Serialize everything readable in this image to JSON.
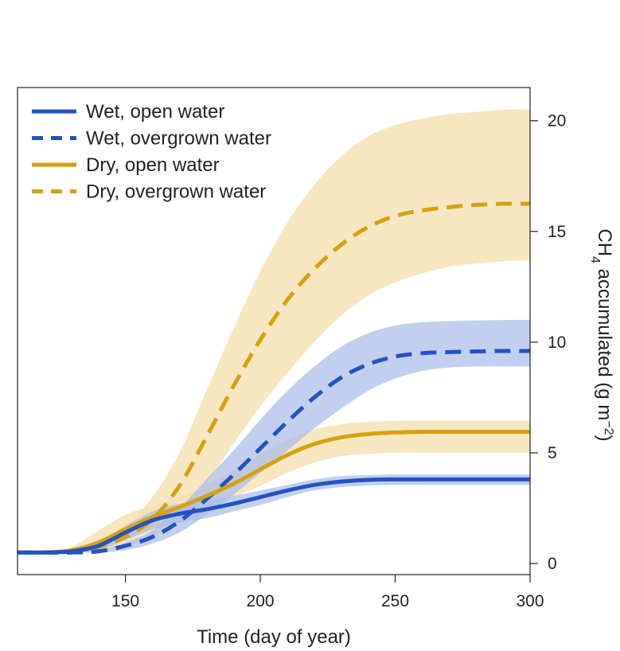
{
  "chart_data": {
    "type": "line",
    "title": "",
    "xlabel": "Time (day of year)",
    "ylabel_main": "CH",
    "ylabel_sub": "4",
    "ylabel_rest": " accumulated (g m",
    "ylabel_sup": "−2",
    "ylabel_close": ")",
    "xlim": [
      110,
      300
    ],
    "ylim": [
      -0.5,
      21.5
    ],
    "xticks": [
      150,
      200,
      250,
      300
    ],
    "yticks": [
      0,
      5,
      10,
      15,
      20
    ],
    "y_axis_side": "right",
    "legend_position": "top-left",
    "grid": false,
    "x": [
      110,
      120,
      130,
      140,
      150,
      160,
      170,
      180,
      190,
      200,
      210,
      220,
      230,
      240,
      250,
      260,
      270,
      280,
      290,
      300
    ],
    "series": [
      {
        "name": "Wet, open water",
        "color": "#2452c4",
        "band_color": "#aabde8",
        "dash": "solid",
        "values": [
          0.5,
          0.5,
          0.55,
          0.8,
          1.4,
          1.95,
          2.25,
          2.45,
          2.7,
          3.0,
          3.3,
          3.55,
          3.7,
          3.78,
          3.8,
          3.8,
          3.8,
          3.8,
          3.8,
          3.8
        ],
        "upper": [
          0.5,
          0.5,
          0.6,
          1.0,
          1.7,
          2.35,
          2.7,
          2.85,
          3.05,
          3.3,
          3.55,
          3.8,
          3.95,
          4.0,
          4.02,
          4.02,
          4.02,
          4.02,
          4.02,
          4.02
        ],
        "lower": [
          0.5,
          0.5,
          0.5,
          0.6,
          1.05,
          1.55,
          1.85,
          2.05,
          2.35,
          2.65,
          3.0,
          3.3,
          3.45,
          3.52,
          3.55,
          3.55,
          3.55,
          3.55,
          3.55,
          3.55
        ]
      },
      {
        "name": "Wet, overgrown water",
        "color": "#2452c4",
        "band_color": "#aabde8",
        "dash": "dashed",
        "values": [
          0.5,
          0.5,
          0.5,
          0.55,
          0.8,
          1.2,
          1.9,
          2.9,
          4.0,
          5.2,
          6.4,
          7.5,
          8.4,
          9.0,
          9.35,
          9.5,
          9.55,
          9.58,
          9.6,
          9.6
        ],
        "upper": [
          0.5,
          0.5,
          0.5,
          0.6,
          0.95,
          1.5,
          2.5,
          3.8,
          5.1,
          6.5,
          7.8,
          8.9,
          9.8,
          10.4,
          10.75,
          10.9,
          10.95,
          10.98,
          11.0,
          11.0
        ],
        "lower": [
          0.5,
          0.5,
          0.5,
          0.5,
          0.6,
          0.9,
          1.4,
          2.2,
          3.1,
          4.1,
          5.1,
          6.1,
          7.0,
          7.8,
          8.35,
          8.7,
          8.85,
          8.9,
          8.9,
          8.9
        ]
      },
      {
        "name": "Dry, open water",
        "color": "#d6a10f",
        "band_color": "#f3e0ae",
        "dash": "solid",
        "values": [
          0.5,
          0.5,
          0.6,
          0.95,
          1.55,
          2.1,
          2.55,
          3.05,
          3.6,
          4.25,
          4.9,
          5.4,
          5.7,
          5.85,
          5.92,
          5.95,
          5.95,
          5.95,
          5.95,
          5.95
        ],
        "upper": [
          0.5,
          0.5,
          0.75,
          1.5,
          2.2,
          2.6,
          3.0,
          3.55,
          4.2,
          4.95,
          5.6,
          6.05,
          6.3,
          6.4,
          6.45,
          6.45,
          6.45,
          6.45,
          6.45,
          6.45
        ],
        "lower": [
          0.5,
          0.5,
          0.5,
          0.6,
          1.1,
          1.6,
          2.1,
          2.55,
          3.0,
          3.5,
          4.1,
          4.55,
          4.85,
          4.95,
          5.0,
          5.0,
          5.0,
          5.0,
          5.0,
          5.0
        ]
      },
      {
        "name": "Dry, overgrown water",
        "color": "#d6a10f",
        "band_color": "#f3e0ae",
        "dash": "dashed",
        "values": [
          0.5,
          0.5,
          0.5,
          0.75,
          1.2,
          2.0,
          3.5,
          5.7,
          8.0,
          10.1,
          11.9,
          13.3,
          14.4,
          15.2,
          15.7,
          15.95,
          16.1,
          16.2,
          16.25,
          16.25
        ],
        "upper": [
          0.5,
          0.5,
          0.5,
          0.9,
          1.7,
          3.0,
          5.0,
          7.8,
          10.6,
          13.2,
          15.4,
          17.1,
          18.4,
          19.3,
          19.8,
          20.1,
          20.3,
          20.4,
          20.5,
          20.5
        ],
        "lower": [
          0.5,
          0.5,
          0.5,
          0.6,
          0.8,
          1.2,
          2.1,
          3.6,
          5.4,
          7.1,
          8.6,
          10.0,
          11.2,
          12.1,
          12.7,
          13.1,
          13.4,
          13.55,
          13.65,
          13.7
        ]
      }
    ]
  }
}
